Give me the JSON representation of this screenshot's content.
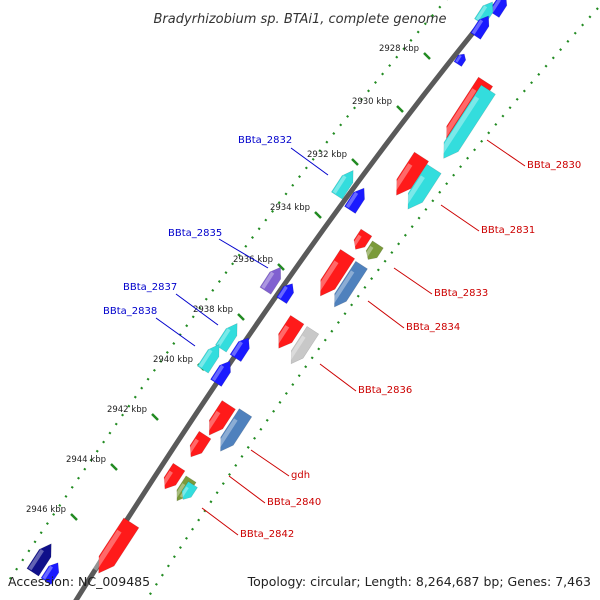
{
  "title": "Bradyrhizobium sp. BTAi1, complete genome",
  "footer": {
    "accession": "Accession: NC_009485",
    "summary": "Topology: circular; Length: 8,264,687 bp; Genes: 7,463"
  },
  "colors": {
    "forward_label": "#0000cc",
    "reverse_label": "#cc0000",
    "backbone": "#888888",
    "ticks": "#228b22",
    "red": "#ff1a1a",
    "cyan": "#33dddd",
    "blue": "#1a1aff",
    "navy": "#10108a",
    "steel": "#4f81bd",
    "purple": "#8060d0",
    "olive": "#7a9a3a",
    "grey": "#c8c8c8"
  },
  "ticks": [
    {
      "label": "2928 kbp"
    },
    {
      "label": "2930 kbp"
    },
    {
      "label": "2932 kbp"
    },
    {
      "label": "2934 kbp"
    },
    {
      "label": "2936 kbp"
    },
    {
      "label": "2938 kbp"
    },
    {
      "label": "2940 kbp"
    },
    {
      "label": "2942 kbp"
    },
    {
      "label": "2944 kbp"
    },
    {
      "label": "2946 kbp"
    }
  ],
  "features": {
    "forward": [
      {
        "color": "blue",
        "kind": "small"
      },
      {
        "color": "cyan"
      },
      {
        "color": "blue"
      },
      {
        "color": "purple"
      },
      {
        "color": "blue"
      },
      {
        "color": "cyan"
      },
      {
        "color": "blue"
      },
      {
        "color": "cyan"
      },
      {
        "color": "blue"
      },
      {
        "color": "navy"
      },
      {
        "color": "blue"
      }
    ],
    "reverse": [
      {
        "color": "red"
      },
      {
        "color": "cyan"
      },
      {
        "color": "red"
      },
      {
        "color": "cyan"
      },
      {
        "color": "red"
      },
      {
        "color": "olive"
      },
      {
        "color": "red"
      },
      {
        "color": "steel"
      },
      {
        "color": "red"
      },
      {
        "color": "grey"
      },
      {
        "color": "red"
      },
      {
        "color": "red"
      },
      {
        "color": "steel"
      },
      {
        "color": "red"
      },
      {
        "color": "olive"
      },
      {
        "color": "cyan"
      },
      {
        "color": "red"
      }
    ]
  },
  "gene_labels": {
    "forward": [
      "BBta_2832",
      "BBta_2835",
      "BBta_2837",
      "BBta_2838"
    ],
    "reverse": [
      "BBta_2830",
      "BBta_2831",
      "BBta_2833",
      "BBta_2834",
      "BBta_2836",
      "gdh",
      "BBta_2840",
      "BBta_2842"
    ]
  }
}
